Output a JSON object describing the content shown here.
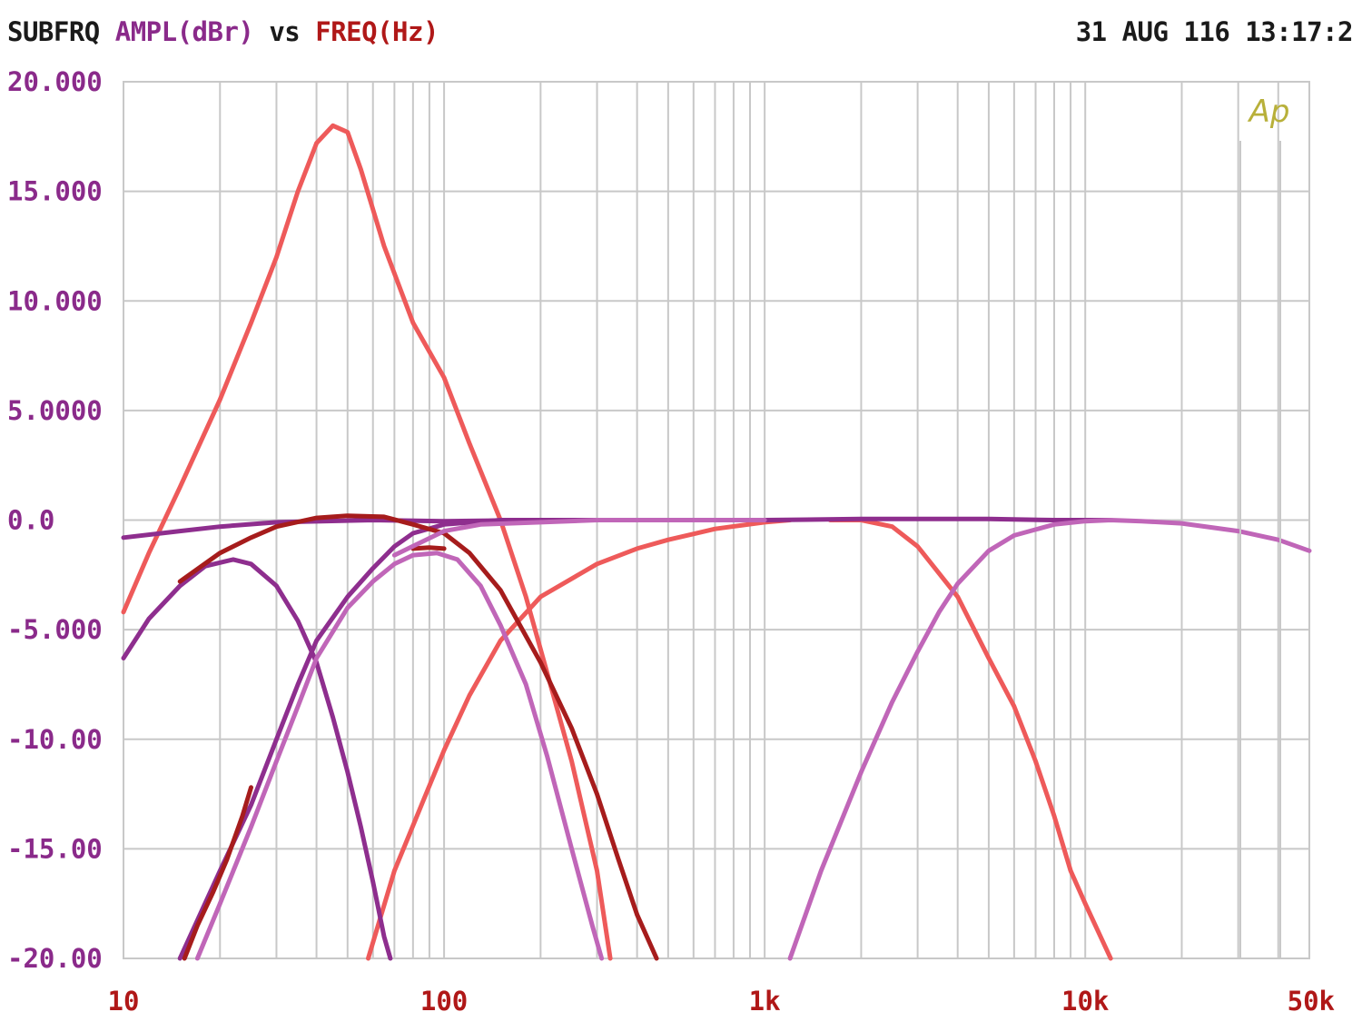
{
  "header": {
    "trace_name": "SUBFRQ",
    "y_quantity": "AMPL(dBr)",
    "vs_word": "vs",
    "x_quantity": "FREQ(Hz)",
    "timestamp": "31 AUG 116 13:17:2"
  },
  "logo": "Ap",
  "colors": {
    "background": "#ffffff",
    "grid": "#c8c8c8",
    "header_text": "#1a1a1a",
    "y_label": "#8a2a8a",
    "x_label": "#b01818",
    "logo": "#b8b03a"
  },
  "chart_data": {
    "type": "line",
    "x_scale": "log",
    "xlim": [
      10,
      50000
    ],
    "ylim": [
      -20,
      20
    ],
    "grid": true,
    "y_ticks": [
      {
        "value": 20,
        "label": "20.000"
      },
      {
        "value": 15,
        "label": "15.000"
      },
      {
        "value": 10,
        "label": "10.000"
      },
      {
        "value": 5,
        "label": "5.0000"
      },
      {
        "value": 0,
        "label": "0.0"
      },
      {
        "value": -5,
        "label": "-5.000"
      },
      {
        "value": -10,
        "label": "-10.00"
      },
      {
        "value": -15,
        "label": "-15.00"
      },
      {
        "value": -20,
        "label": "-20.00"
      }
    ],
    "x_ticks": [
      {
        "value": 10,
        "label": "10"
      },
      {
        "value": 100,
        "label": "100"
      },
      {
        "value": 1000,
        "label": "1k"
      },
      {
        "value": 10000,
        "label": "10k"
      },
      {
        "value": 50000,
        "label": "50k"
      }
    ],
    "series": [
      {
        "color": "#ee5a5a",
        "points": [
          [
            10,
            -4.2
          ],
          [
            12,
            -1.5
          ],
          [
            15,
            1.5
          ],
          [
            20,
            5.5
          ],
          [
            25,
            9
          ],
          [
            30,
            12
          ],
          [
            35,
            15
          ],
          [
            40,
            17.2
          ],
          [
            45,
            18
          ],
          [
            50,
            17.7
          ],
          [
            55,
            16
          ],
          [
            65,
            12.5
          ],
          [
            80,
            9
          ],
          [
            100,
            6.5
          ],
          [
            120,
            3.5
          ],
          [
            150,
            0
          ],
          [
            180,
            -3.5
          ],
          [
            210,
            -7
          ],
          [
            250,
            -11
          ],
          [
            300,
            -16
          ],
          [
            330,
            -20
          ]
        ]
      },
      {
        "color": "#ee5a5a",
        "points": [
          [
            58,
            -20
          ],
          [
            70,
            -16
          ],
          [
            85,
            -13
          ],
          [
            100,
            -10.5
          ],
          [
            120,
            -8
          ],
          [
            150,
            -5.5
          ],
          [
            200,
            -3.5
          ],
          [
            300,
            -2
          ],
          [
            400,
            -1.3
          ],
          [
            500,
            -0.9
          ],
          [
            700,
            -0.4
          ],
          [
            1000,
            -0.1
          ],
          [
            1200,
            0
          ]
        ]
      },
      {
        "color": "#ee5a5a",
        "points": [
          [
            1600,
            0
          ],
          [
            2000,
            0
          ],
          [
            2500,
            -0.3
          ],
          [
            3000,
            -1.2
          ],
          [
            4000,
            -3.5
          ],
          [
            5000,
            -6.3
          ],
          [
            6000,
            -8.5
          ],
          [
            7000,
            -11
          ],
          [
            8000,
            -13.5
          ],
          [
            9000,
            -16
          ],
          [
            10000,
            -17.5
          ],
          [
            12000,
            -20
          ]
        ]
      },
      {
        "color": "#8e2e8e",
        "points": [
          [
            10,
            -0.8
          ],
          [
            15,
            -0.5
          ],
          [
            20,
            -0.3
          ],
          [
            30,
            -0.1
          ],
          [
            60,
            0
          ],
          [
            100,
            -0.05
          ],
          [
            200,
            0
          ],
          [
            300,
            0
          ],
          [
            500,
            0
          ],
          [
            1000,
            0
          ],
          [
            2000,
            0.05
          ],
          [
            5000,
            0.05
          ],
          [
            8000,
            0
          ],
          [
            12000,
            0
          ]
        ]
      },
      {
        "color": "#8e2e8e",
        "points": [
          [
            10,
            -6.3
          ],
          [
            12,
            -4.5
          ],
          [
            15,
            -3
          ],
          [
            18,
            -2.1
          ],
          [
            22,
            -1.8
          ],
          [
            25,
            -2
          ],
          [
            30,
            -3
          ],
          [
            35,
            -4.6
          ],
          [
            40,
            -6.5
          ],
          [
            45,
            -9
          ],
          [
            50,
            -11.5
          ],
          [
            55,
            -14
          ],
          [
            60,
            -16.5
          ],
          [
            65,
            -19
          ],
          [
            68,
            -20
          ]
        ]
      },
      {
        "color": "#8e2e8e",
        "points": [
          [
            15,
            -20
          ],
          [
            20,
            -16
          ],
          [
            25,
            -13
          ],
          [
            30,
            -10
          ],
          [
            35,
            -7.5
          ],
          [
            40,
            -5.5
          ],
          [
            50,
            -3.5
          ],
          [
            60,
            -2.2
          ],
          [
            70,
            -1.2
          ],
          [
            80,
            -0.6
          ],
          [
            100,
            -0.2
          ],
          [
            150,
            0
          ],
          [
            200,
            0
          ]
        ]
      },
      {
        "color": "#a61c1c",
        "points": [
          [
            15,
            -2.8
          ],
          [
            20,
            -1.5
          ],
          [
            25,
            -0.8
          ],
          [
            30,
            -0.3
          ],
          [
            40,
            0.1
          ],
          [
            50,
            0.2
          ],
          [
            65,
            0.15
          ],
          [
            80,
            -0.2
          ],
          [
            100,
            -0.6
          ],
          [
            120,
            -1.5
          ],
          [
            150,
            -3.2
          ],
          [
            200,
            -6.5
          ],
          [
            250,
            -9.5
          ],
          [
            300,
            -12.5
          ],
          [
            350,
            -15.5
          ],
          [
            400,
            -18
          ],
          [
            460,
            -20
          ]
        ]
      },
      {
        "color": "#a61c1c",
        "points": [
          [
            15.5,
            -20
          ],
          [
            17,
            -18.5
          ],
          [
            19,
            -17
          ],
          [
            21,
            -15.5
          ],
          [
            23.5,
            -13.5
          ],
          [
            25,
            -12.2
          ]
        ]
      },
      {
        "color": "#a61c1c",
        "points": [
          [
            80,
            -1.3
          ],
          [
            90,
            -1.25
          ],
          [
            100,
            -1.3
          ]
        ]
      },
      {
        "color": "#c066b8",
        "points": [
          [
            17,
            -20
          ],
          [
            20,
            -17.5
          ],
          [
            25,
            -14
          ],
          [
            30,
            -11
          ],
          [
            35,
            -8.5
          ],
          [
            40,
            -6.3
          ],
          [
            50,
            -4
          ],
          [
            60,
            -2.8
          ],
          [
            70,
            -2
          ],
          [
            80,
            -1.6
          ],
          [
            95,
            -1.5
          ],
          [
            110,
            -1.8
          ],
          [
            130,
            -3
          ],
          [
            150,
            -4.8
          ],
          [
            180,
            -7.5
          ],
          [
            210,
            -10.8
          ],
          [
            250,
            -15
          ],
          [
            290,
            -18.5
          ],
          [
            310,
            -20
          ]
        ]
      },
      {
        "color": "#c066b8",
        "points": [
          [
            70,
            -1.6
          ],
          [
            100,
            -0.5
          ],
          [
            130,
            -0.2
          ],
          [
            200,
            -0.1
          ],
          [
            300,
            0
          ],
          [
            500,
            0
          ],
          [
            700,
            0
          ],
          [
            1000,
            0
          ]
        ]
      },
      {
        "color": "#c066b8",
        "points": [
          [
            1200,
            -20
          ],
          [
            1500,
            -16
          ],
          [
            2000,
            -11.5
          ],
          [
            2500,
            -8.3
          ],
          [
            3000,
            -6
          ],
          [
            3500,
            -4.2
          ],
          [
            4000,
            -2.9
          ],
          [
            5000,
            -1.4
          ],
          [
            6000,
            -0.7
          ],
          [
            8000,
            -0.2
          ],
          [
            10000,
            -0.05
          ],
          [
            12000,
            0
          ],
          [
            15000,
            -0.05
          ],
          [
            20000,
            -0.15
          ],
          [
            30000,
            -0.5
          ],
          [
            40000,
            -0.9
          ],
          [
            50000,
            -1.4
          ]
        ]
      }
    ]
  }
}
